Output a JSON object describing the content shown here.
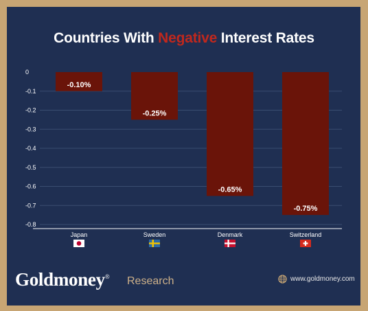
{
  "title": {
    "prefix": "Countries With ",
    "highlight": "Negative",
    "suffix": " Interest Rates"
  },
  "brand": {
    "name": "Goldmoney",
    "mark": "®",
    "sub": "Research"
  },
  "website": "www.goldmoney.com",
  "colors": {
    "background": "#1f2f52",
    "border": "#c7a574",
    "bar": "#6a1409",
    "highlight": "#c0281d"
  },
  "chart_data": {
    "type": "bar",
    "categories": [
      "Japan",
      "Sweden",
      "Denmark",
      "Switzerland"
    ],
    "values": [
      -0.1,
      -0.25,
      -0.65,
      -0.75
    ],
    "data_labels": [
      "-0.10%",
      "-0.25%",
      "-0.65%",
      "-0.75%"
    ],
    "title": "Countries With Negative Interest Rates",
    "xlabel": "",
    "ylabel": "",
    "ylim": [
      -0.8,
      0
    ],
    "yticks": [
      0,
      -0.1,
      -0.2,
      -0.3,
      -0.4,
      -0.5,
      -0.6,
      -0.7,
      -0.8
    ],
    "ytick_labels": [
      "0",
      "-0.1",
      "-0.2",
      "-0.3",
      "-0.4",
      "-0.5",
      "-0.6",
      "-0.7",
      "-0.8"
    ],
    "grid": true,
    "flags": [
      "japan-flag-icon",
      "sweden-flag-icon",
      "denmark-flag-icon",
      "switzerland-flag-icon"
    ]
  }
}
